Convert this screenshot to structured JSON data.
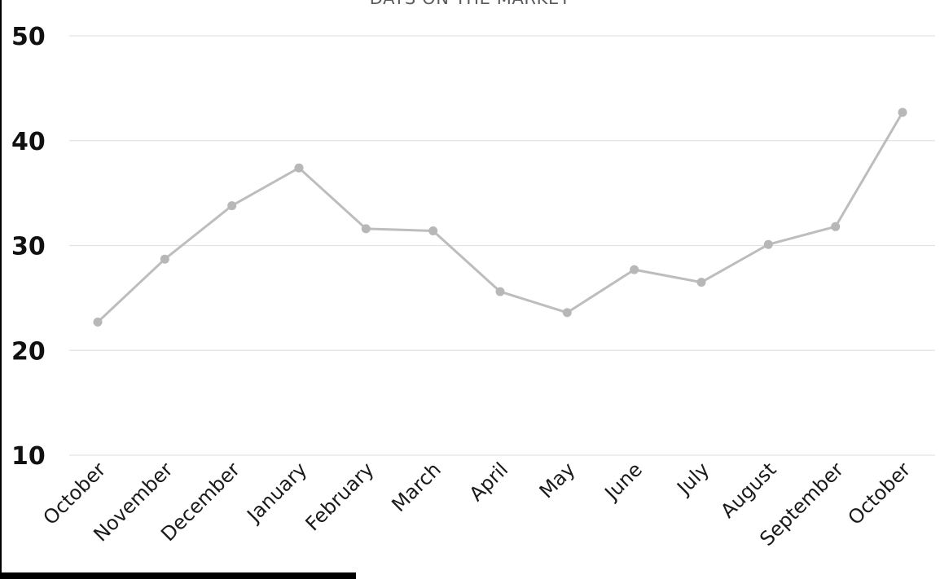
{
  "page": {
    "background": "#ffffff"
  },
  "chart_data": {
    "type": "line",
    "title": "DAYS ON THE MARKET",
    "categories": [
      "October",
      "November",
      "December",
      "January",
      "February",
      "March",
      "April",
      "May",
      "June",
      "July",
      "August",
      "September",
      "October"
    ],
    "values": [
      22.7,
      28.7,
      33.8,
      37.4,
      31.6,
      31.4,
      25.6,
      23.6,
      27.7,
      26.5,
      30.1,
      31.8,
      42.7
    ],
    "xlabel": "",
    "ylabel": "",
    "y_ticks": [
      50,
      40,
      30,
      20,
      10
    ],
    "ylim": [
      10,
      52
    ],
    "grid": "horizontal-only",
    "legend": "none",
    "x_label_rotation": -45,
    "marker": "circle",
    "colors": {
      "line": "#bdbdbd",
      "marker": "#b7b7b7",
      "gridline": "#e3e3e3",
      "y_tick_text": "#111111",
      "x_tick_text": "#1a1a1a",
      "title_text": "#5a5b5f"
    }
  },
  "decor": {
    "left_border_color": "#000000",
    "bottom_bar_color": "#000000"
  }
}
